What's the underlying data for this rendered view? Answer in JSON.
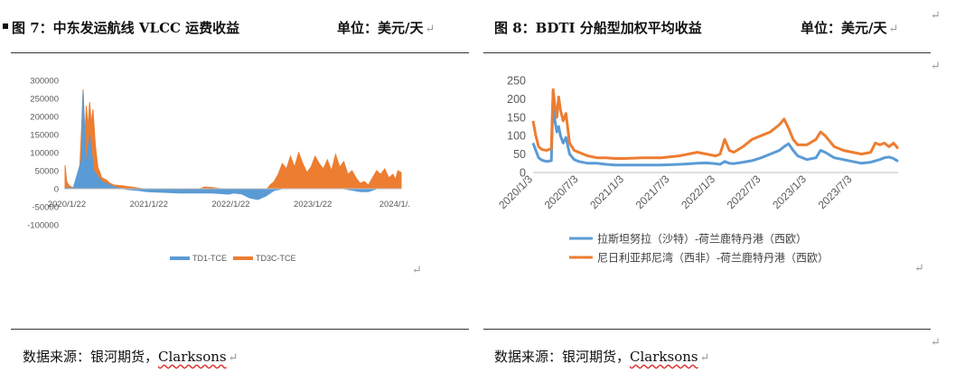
{
  "panels": {
    "left": {
      "title": "图 7：中东发运航线 VLCC 运费收益",
      "unit": "单位：美元/天",
      "source_prefix": "数据来源：银河期货，",
      "source_name": "Clarksons"
    },
    "right": {
      "title": "图 8：BDTI 分船型加权平均收益",
      "unit": "单位：美元/天",
      "source_prefix": "数据来源：银河期货，",
      "source_name": "Clarksons"
    }
  },
  "return_mark": "↵",
  "chart_data": [
    {
      "type": "area",
      "title": "",
      "xlabel": "",
      "ylabel": "",
      "ylim": [
        -100000,
        300000
      ],
      "yticks": [
        "300000",
        "250000",
        "200000",
        "150000",
        "100000",
        "50000",
        "0",
        "-50000",
        "-100000"
      ],
      "yticks_values": [
        300000,
        250000,
        200000,
        150000,
        100000,
        50000,
        0,
        -50000,
        -100000
      ],
      "xticks": [
        "2020/1/22",
        "2021/1/22",
        "2022/1/22",
        "2023/1/22",
        "2024/1/."
      ],
      "grid": false,
      "legend_position": "bottom",
      "series": [
        {
          "name": "TD1-TCE",
          "color": "#5b9bd5",
          "points": [
            [
              2020.0,
              2000
            ],
            [
              2020.1,
              2000
            ],
            [
              2020.2,
              80000
            ],
            [
              2020.22,
              270000
            ],
            [
              2020.26,
              60000
            ],
            [
              2020.3,
              150000
            ],
            [
              2020.35,
              50000
            ],
            [
              2020.45,
              20000
            ],
            [
              2020.6,
              5000
            ],
            [
              2020.75,
              -2000
            ],
            [
              2020.9,
              -5000
            ],
            [
              2021.0,
              -8000
            ],
            [
              2021.2,
              -10000
            ],
            [
              2021.4,
              -12000
            ],
            [
              2021.6,
              -12000
            ],
            [
              2021.8,
              -12000
            ],
            [
              2022.0,
              -15000
            ],
            [
              2022.05,
              -12000
            ],
            [
              2022.15,
              -14000
            ],
            [
              2022.25,
              -25000
            ],
            [
              2022.35,
              -30000
            ],
            [
              2022.45,
              -20000
            ],
            [
              2022.55,
              -5000
            ],
            [
              2022.65,
              0
            ],
            [
              2022.8,
              0
            ],
            [
              2023.0,
              0
            ],
            [
              2023.2,
              0
            ],
            [
              2023.4,
              0
            ],
            [
              2023.6,
              -8000
            ],
            [
              2023.7,
              -8000
            ],
            [
              2023.8,
              0
            ],
            [
              2023.95,
              0
            ],
            [
              2024.05,
              0
            ],
            [
              2024.1,
              0
            ]
          ]
        },
        {
          "name": "TD3C-TCE",
          "color": "#ed7d31",
          "points": [
            [
              2020.0,
              65000
            ],
            [
              2020.02,
              20000
            ],
            [
              2020.05,
              8000
            ],
            [
              2020.1,
              3000
            ],
            [
              2020.15,
              15000
            ],
            [
              2020.18,
              60000
            ],
            [
              2020.2,
              160000
            ],
            [
              2020.22,
              275000
            ],
            [
              2020.24,
              140000
            ],
            [
              2020.26,
              230000
            ],
            [
              2020.28,
              170000
            ],
            [
              2020.3,
              240000
            ],
            [
              2020.32,
              180000
            ],
            [
              2020.34,
              220000
            ],
            [
              2020.37,
              120000
            ],
            [
              2020.4,
              60000
            ],
            [
              2020.45,
              30000
            ],
            [
              2020.5,
              25000
            ],
            [
              2020.55,
              15000
            ],
            [
              2020.6,
              10000
            ],
            [
              2020.7,
              8000
            ],
            [
              2020.8,
              5000
            ],
            [
              2020.9,
              2000
            ],
            [
              2021.0,
              -2000
            ],
            [
              2021.2,
              -5000
            ],
            [
              2021.4,
              -5000
            ],
            [
              2021.6,
              -5000
            ],
            [
              2021.7,
              5000
            ],
            [
              2021.8,
              3000
            ],
            [
              2021.9,
              0
            ],
            [
              2022.0,
              -5000
            ],
            [
              2022.1,
              0
            ],
            [
              2022.2,
              0
            ],
            [
              2022.3,
              -15000
            ],
            [
              2022.4,
              -20000
            ],
            [
              2022.5,
              10000
            ],
            [
              2022.55,
              20000
            ],
            [
              2022.6,
              40000
            ],
            [
              2022.65,
              70000
            ],
            [
              2022.7,
              55000
            ],
            [
              2022.75,
              90000
            ],
            [
              2022.8,
              60000
            ],
            [
              2022.85,
              100000
            ],
            [
              2022.9,
              70000
            ],
            [
              2022.95,
              45000
            ],
            [
              2023.0,
              60000
            ],
            [
              2023.05,
              90000
            ],
            [
              2023.1,
              70000
            ],
            [
              2023.15,
              55000
            ],
            [
              2023.2,
              80000
            ],
            [
              2023.25,
              50000
            ],
            [
              2023.3,
              95000
            ],
            [
              2023.35,
              60000
            ],
            [
              2023.4,
              75000
            ],
            [
              2023.45,
              40000
            ],
            [
              2023.5,
              50000
            ],
            [
              2023.55,
              30000
            ],
            [
              2023.6,
              15000
            ],
            [
              2023.65,
              20000
            ],
            [
              2023.7,
              10000
            ],
            [
              2023.75,
              30000
            ],
            [
              2023.8,
              50000
            ],
            [
              2023.85,
              40000
            ],
            [
              2023.9,
              55000
            ],
            [
              2023.95,
              30000
            ],
            [
              2024.0,
              40000
            ],
            [
              2024.03,
              25000
            ],
            [
              2024.06,
              50000
            ],
            [
              2024.1,
              45000
            ]
          ]
        }
      ]
    },
    {
      "type": "line",
      "title": "",
      "xlabel": "",
      "ylabel": "",
      "ylim": [
        0,
        250
      ],
      "yticks": [
        "250",
        "200",
        "150",
        "100",
        "50",
        "0"
      ],
      "yticks_values": [
        250,
        200,
        150,
        100,
        50,
        0
      ],
      "xticks": [
        "2020/1/3",
        "2020/7/3",
        "2021/1/3",
        "2021/7/3",
        "2022/1/3",
        "2022/7/3",
        "2023/1/3",
        "2023/7/3"
      ],
      "xticks_values": [
        2020.0,
        2020.5,
        2021.0,
        2021.5,
        2022.0,
        2022.5,
        2023.0,
        2023.5
      ],
      "xlim": [
        2020.0,
        2024.0
      ],
      "grid": false,
      "legend_position": "bottom",
      "series": [
        {
          "name": "拉斯坦努拉（沙特）-荷兰鹿特丹港（西欧）",
          "color": "#5b9bd5",
          "points": [
            [
              2020.0,
              80
            ],
            [
              2020.03,
              60
            ],
            [
              2020.06,
              40
            ],
            [
              2020.1,
              33
            ],
            [
              2020.15,
              30
            ],
            [
              2020.2,
              32
            ],
            [
              2020.22,
              220
            ],
            [
              2020.24,
              140
            ],
            [
              2020.26,
              110
            ],
            [
              2020.28,
              125
            ],
            [
              2020.3,
              100
            ],
            [
              2020.33,
              80
            ],
            [
              2020.36,
              95
            ],
            [
              2020.4,
              50
            ],
            [
              2020.45,
              35
            ],
            [
              2020.5,
              30
            ],
            [
              2020.6,
              25
            ],
            [
              2020.7,
              25
            ],
            [
              2020.8,
              22
            ],
            [
              2020.9,
              20
            ],
            [
              2021.0,
              20
            ],
            [
              2021.2,
              20
            ],
            [
              2021.4,
              20
            ],
            [
              2021.6,
              22
            ],
            [
              2021.8,
              25
            ],
            [
              2021.9,
              26
            ],
            [
              2022.0,
              24
            ],
            [
              2022.05,
              22
            ],
            [
              2022.1,
              30
            ],
            [
              2022.15,
              25
            ],
            [
              2022.2,
              24
            ],
            [
              2022.3,
              28
            ],
            [
              2022.4,
              32
            ],
            [
              2022.5,
              40
            ],
            [
              2022.6,
              50
            ],
            [
              2022.7,
              60
            ],
            [
              2022.75,
              70
            ],
            [
              2022.8,
              78
            ],
            [
              2022.85,
              60
            ],
            [
              2022.9,
              45
            ],
            [
              2023.0,
              35
            ],
            [
              2023.1,
              40
            ],
            [
              2023.15,
              60
            ],
            [
              2023.2,
              55
            ],
            [
              2023.3,
              40
            ],
            [
              2023.4,
              35
            ],
            [
              2023.5,
              30
            ],
            [
              2023.6,
              25
            ],
            [
              2023.7,
              28
            ],
            [
              2023.8,
              35
            ],
            [
              2023.85,
              40
            ],
            [
              2023.9,
              42
            ],
            [
              2023.95,
              38
            ],
            [
              2024.0,
              30
            ]
          ]
        },
        {
          "name": "尼日利亚邦尼湾（西非）-荷兰鹿特丹港（西欧）",
          "color": "#ed7d31",
          "points": [
            [
              2020.0,
              140
            ],
            [
              2020.03,
              100
            ],
            [
              2020.06,
              70
            ],
            [
              2020.1,
              62
            ],
            [
              2020.15,
              60
            ],
            [
              2020.2,
              65
            ],
            [
              2020.22,
              225
            ],
            [
              2020.24,
              180
            ],
            [
              2020.26,
              150
            ],
            [
              2020.28,
              205
            ],
            [
              2020.3,
              170
            ],
            [
              2020.33,
              140
            ],
            [
              2020.36,
              160
            ],
            [
              2020.4,
              80
            ],
            [
              2020.45,
              60
            ],
            [
              2020.5,
              55
            ],
            [
              2020.6,
              45
            ],
            [
              2020.7,
              40
            ],
            [
              2020.8,
              40
            ],
            [
              2020.9,
              38
            ],
            [
              2021.0,
              38
            ],
            [
              2021.2,
              40
            ],
            [
              2021.4,
              40
            ],
            [
              2021.6,
              45
            ],
            [
              2021.8,
              55
            ],
            [
              2021.9,
              50
            ],
            [
              2022.0,
              45
            ],
            [
              2022.05,
              50
            ],
            [
              2022.1,
              90
            ],
            [
              2022.15,
              60
            ],
            [
              2022.2,
              55
            ],
            [
              2022.3,
              70
            ],
            [
              2022.4,
              90
            ],
            [
              2022.45,
              95
            ],
            [
              2022.5,
              100
            ],
            [
              2022.6,
              110
            ],
            [
              2022.7,
              130
            ],
            [
              2022.75,
              145
            ],
            [
              2022.8,
              120
            ],
            [
              2022.85,
              90
            ],
            [
              2022.9,
              75
            ],
            [
              2023.0,
              75
            ],
            [
              2023.1,
              90
            ],
            [
              2023.15,
              110
            ],
            [
              2023.2,
              100
            ],
            [
              2023.3,
              70
            ],
            [
              2023.4,
              60
            ],
            [
              2023.5,
              55
            ],
            [
              2023.6,
              50
            ],
            [
              2023.7,
              55
            ],
            [
              2023.75,
              80
            ],
            [
              2023.8,
              75
            ],
            [
              2023.85,
              80
            ],
            [
              2023.9,
              70
            ],
            [
              2023.95,
              80
            ],
            [
              2024.0,
              65
            ]
          ]
        }
      ]
    }
  ]
}
